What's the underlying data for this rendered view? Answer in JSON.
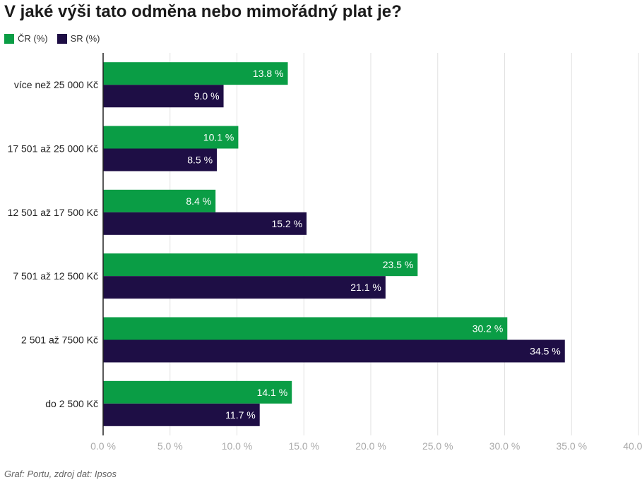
{
  "chart_data": {
    "type": "bar",
    "orientation": "horizontal",
    "title": "V jaké výši tato odměna nebo mimořádný plat je?",
    "categories": [
      "více než 25 000 Kč",
      "17 501 až 25 000 Kč",
      "12 501 až 17 500 Kč",
      "7 501 až 12 500 Kč",
      "2 501 až 7500 Kč",
      "do 2 500 Kč"
    ],
    "series": [
      {
        "name": "ČR (%)",
        "color": "#0a9d45",
        "values": [
          13.8,
          10.1,
          8.4,
          23.5,
          30.2,
          14.1
        ]
      },
      {
        "name": "SR (%)",
        "color": "#1e0e45",
        "values": [
          9.0,
          8.5,
          15.2,
          21.1,
          34.5,
          11.7
        ]
      }
    ],
    "xlim": [
      0,
      40
    ],
    "xticks": [
      0,
      5,
      10,
      15,
      20,
      25,
      30,
      35,
      40
    ],
    "tick_labels": [
      "0.0 %",
      "5.0 %",
      "10.0 %",
      "15.0 %",
      "20.0 %",
      "25.0 %",
      "30.0 %",
      "35.0 %",
      "40.0 %"
    ],
    "value_labels": [
      [
        "13.8 %",
        "10.1 %",
        "8.4 %",
        "23.5 %",
        "30.2 %",
        "14.1 %"
      ],
      [
        "9.0 %",
        "8.5 %",
        "15.2 %",
        "21.1 %",
        "34.5 %",
        "11.7 %"
      ]
    ],
    "grid": true,
    "legend_position": "top-left",
    "xlabel": "",
    "ylabel": ""
  },
  "source": "Graf: Portu, zdroj dat: Ipsos"
}
